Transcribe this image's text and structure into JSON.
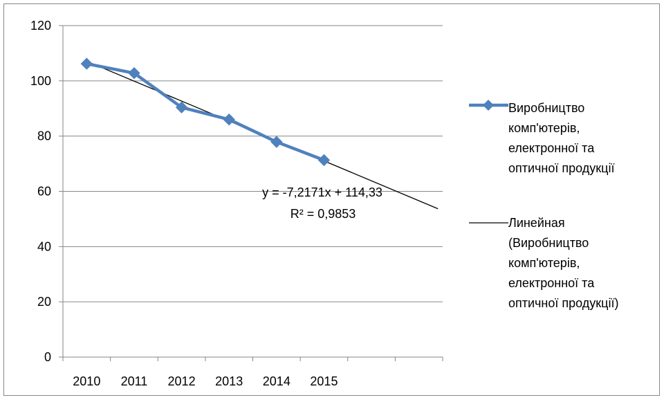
{
  "chart_data": {
    "type": "line",
    "categories": [
      "2010",
      "2011",
      "2012",
      "2013",
      "2014",
      "2015"
    ],
    "ylim": [
      0,
      120
    ],
    "yticks": [
      0,
      20,
      40,
      60,
      80,
      100,
      120
    ],
    "grid": true,
    "legend_position": "right",
    "series": [
      {
        "name": "Виробництво комп'ютерів, електронної та оптичної продукції",
        "legend_lines": [
          "Виробництво",
          "комп'ютерів,",
          "електронної та",
          "оптичної продукції"
        ],
        "values": [
          106.2,
          102.8,
          90.4,
          86.0,
          77.9,
          71.3
        ],
        "color": "#4f81bd",
        "marker": "diamond"
      },
      {
        "name": "Линейная (Виробництво комп'ютерів, електронної та оптичної продукції)",
        "legend_lines": [
          "Линейная",
          "(Виробництво",
          "комп'ютерів,",
          "електронної та",
          "оптичної продукції)"
        ],
        "trendline": {
          "slope": -7.2171,
          "intercept": 114.33,
          "x_from": 1,
          "x_to": 8.4
        },
        "color": "#000000"
      }
    ],
    "trendline_label": {
      "equation": "y = -7,2171x + 114,33",
      "r_squared": "R² = 0,9853"
    }
  }
}
